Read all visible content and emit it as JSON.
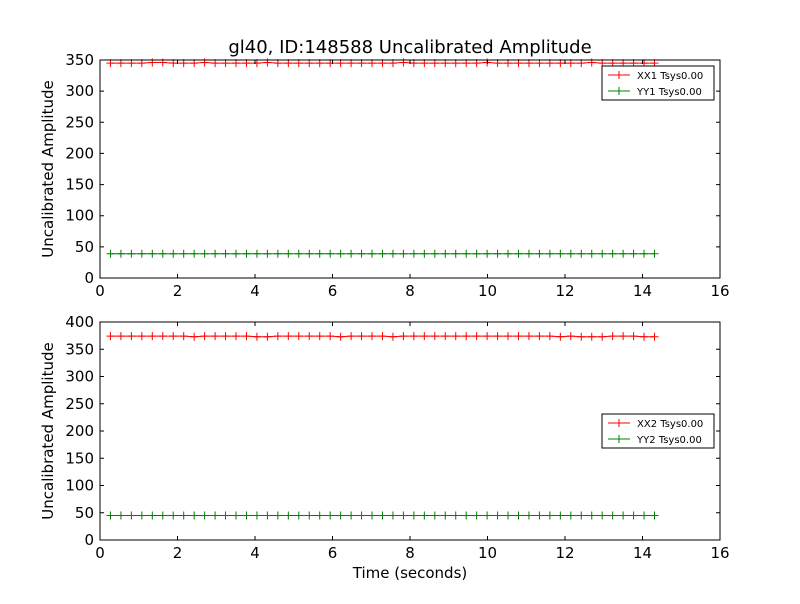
{
  "chart_data": [
    {
      "type": "line",
      "title": "gl40, ID:148588 Uncalibrated Amplitude",
      "xlabel": "",
      "ylabel": "Uncalibrated Amplitude",
      "xlim": [
        0,
        16
      ],
      "ylim": [
        0,
        350
      ],
      "xticks": [
        "0",
        "2",
        "4",
        "6",
        "8",
        "10",
        "12",
        "14",
        "16"
      ],
      "yticks": [
        "0",
        "50",
        "100",
        "150",
        "200",
        "250",
        "300",
        "350"
      ],
      "legend_position": "upper-right",
      "x": {
        "start": 0.27,
        "step": 0.27,
        "count": 53
      },
      "series": [
        {
          "name": "XX1 Tsys0.00",
          "color": "#ff0000",
          "values": [
            345,
            345,
            345,
            345,
            346,
            346,
            345,
            345,
            345,
            346,
            345,
            345,
            345,
            345,
            345,
            346,
            345,
            345,
            345,
            345,
            345,
            345,
            345,
            345,
            345,
            345,
            345,
            345,
            346,
            345,
            345,
            345,
            345,
            345,
            345,
            345,
            346,
            345,
            345,
            345,
            345,
            345,
            345,
            345,
            345,
            345,
            346,
            345,
            345,
            345,
            345,
            345,
            345
          ]
        },
        {
          "name": "YY1 Tsys0.00",
          "color": "#008000",
          "values": [
            39,
            39,
            39,
            39,
            39,
            39,
            39,
            39,
            39,
            39,
            39,
            39,
            39,
            39,
            39,
            39,
            39,
            39,
            39,
            39,
            39,
            39,
            39,
            39,
            39,
            39,
            39,
            39,
            39,
            39,
            39,
            39,
            39,
            39,
            39,
            39,
            39,
            39,
            39,
            39,
            39,
            39,
            39,
            39,
            39,
            39,
            39,
            39,
            39,
            39,
            39,
            39,
            39
          ]
        }
      ]
    },
    {
      "type": "line",
      "title": "",
      "xlabel": "Time (seconds)",
      "ylabel": "Uncalibrated Amplitude",
      "xlim": [
        0,
        16
      ],
      "ylim": [
        0,
        400
      ],
      "xticks": [
        "0",
        "2",
        "4",
        "6",
        "8",
        "10",
        "12",
        "14",
        "16"
      ],
      "yticks": [
        "0",
        "50",
        "100",
        "150",
        "200",
        "250",
        "300",
        "350",
        "400"
      ],
      "legend_position": "center-right",
      "x": {
        "start": 0.27,
        "step": 0.27,
        "count": 53
      },
      "series": [
        {
          "name": "XX2 Tsys0.00",
          "color": "#ff0000",
          "values": [
            374,
            374,
            374,
            374,
            374,
            374,
            374,
            374,
            373,
            374,
            374,
            374,
            374,
            374,
            373,
            373,
            374,
            374,
            374,
            374,
            374,
            374,
            373,
            374,
            374,
            374,
            374,
            373,
            374,
            374,
            374,
            374,
            374,
            374,
            374,
            374,
            374,
            374,
            374,
            374,
            374,
            374,
            374,
            373,
            374,
            373,
            373,
            373,
            374,
            374,
            374,
            373,
            373
          ]
        },
        {
          "name": "YY2 Tsys0.00",
          "color": "#008000",
          "values": [
            45,
            45,
            45,
            45,
            45,
            45,
            45,
            45,
            45,
            45,
            45,
            45,
            45,
            45,
            45,
            45,
            45,
            45,
            45,
            45,
            45,
            45,
            45,
            45,
            45,
            45,
            45,
            45,
            45,
            45,
            45,
            45,
            45,
            45,
            45,
            45,
            45,
            45,
            45,
            45,
            45,
            45,
            45,
            45,
            45,
            45,
            45,
            45,
            45,
            45,
            45,
            45,
            45
          ]
        }
      ]
    }
  ]
}
